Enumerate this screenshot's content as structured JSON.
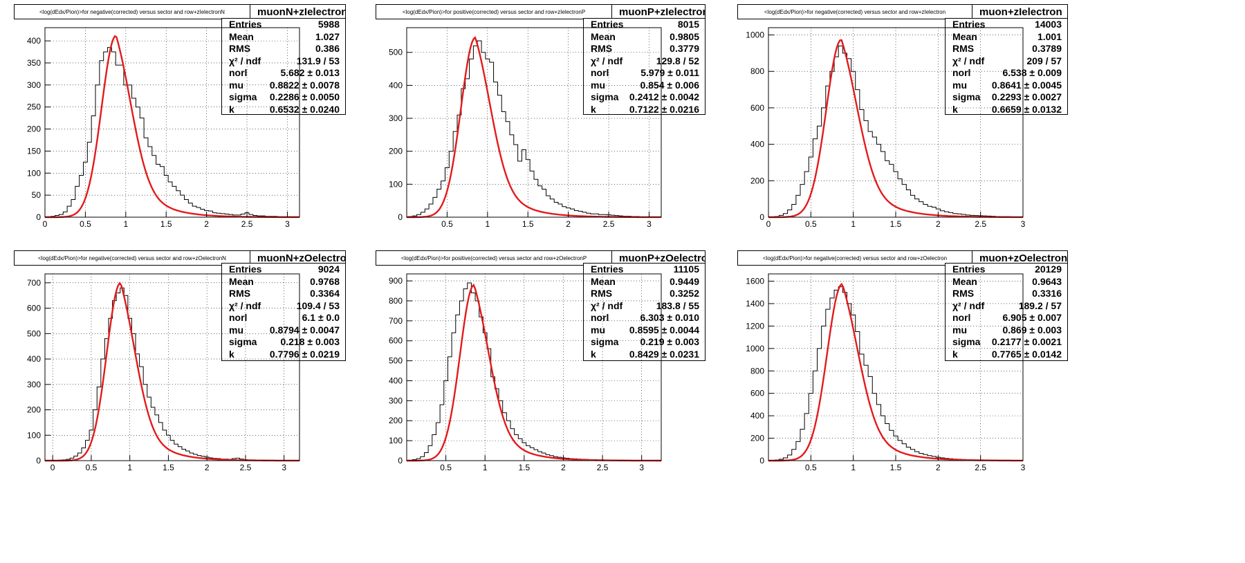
{
  "colors": {
    "fit": "#e31a1c",
    "histogram": "#000000",
    "grid": "#000000",
    "frame": "#000000"
  },
  "charts": [
    {
      "title": "<log(dEdx/Pion)>for negative(corrected) versus sector and row+zIelectronN",
      "name": "muonN+zIelectronN",
      "stats": [
        {
          "k": "Entries",
          "v": "5988"
        },
        {
          "k": "Mean",
          "v": "1.027"
        },
        {
          "k": "RMS",
          "v": "0.386"
        },
        {
          "k": "χ² / ndf",
          "v": "131.9 / 53"
        },
        {
          "k": "norl",
          "v": "5.682 ± 0.013"
        },
        {
          "k": "mu",
          "v": "0.8822 ± 0.0078"
        },
        {
          "k": "sigma",
          "v": "0.2286 ± 0.0050"
        },
        {
          "k": "k",
          "v": "0.6532 ± 0.0240"
        }
      ],
      "xticks": [
        "0",
        "0.5",
        "1",
        "1.5",
        "2",
        "2.5",
        "3"
      ],
      "yticks": [
        "0",
        "50",
        "100",
        "150",
        "200",
        "250",
        "300",
        "350",
        "400"
      ]
    },
    {
      "title": "<log(dEdx/Pion)>for positive(corrected) versus sector and row+zIelectronP",
      "name": "muonP+zIelectronP",
      "stats": [
        {
          "k": "Entries",
          "v": "8015"
        },
        {
          "k": "Mean",
          "v": "0.9805"
        },
        {
          "k": "RMS",
          "v": "0.3779"
        },
        {
          "k": "χ² / ndf",
          "v": "129.8 / 52"
        },
        {
          "k": "norl",
          "v": "5.979 ± 0.011"
        },
        {
          "k": "mu",
          "v": "0.854 ± 0.006"
        },
        {
          "k": "sigma",
          "v": "0.2412 ± 0.0042"
        },
        {
          "k": "k",
          "v": "0.7122 ± 0.0216"
        }
      ],
      "xticks": [
        "0.5",
        "1",
        "1.5",
        "2",
        "2.5",
        "3"
      ],
      "yticks": [
        "0",
        "100",
        "200",
        "300",
        "400",
        "500"
      ]
    },
    {
      "title": "<log(dEdx/Pion)>for negative(corrected) versus sector and row+zIelectron",
      "name": "muon+zIelectron",
      "stats": [
        {
          "k": "Entries",
          "v": "14003"
        },
        {
          "k": "Mean",
          "v": "1.001"
        },
        {
          "k": "RMS",
          "v": "0.3789"
        },
        {
          "k": "χ² / ndf",
          "v": "209 / 57"
        },
        {
          "k": "norl",
          "v": "6.538 ± 0.009"
        },
        {
          "k": "mu",
          "v": "0.8641 ± 0.0045"
        },
        {
          "k": "sigma",
          "v": "0.2293 ± 0.0027"
        },
        {
          "k": "k",
          "v": "0.6659 ± 0.0132"
        }
      ],
      "xticks": [
        "0",
        "0.5",
        "1",
        "1.5",
        "2",
        "2.5",
        "3"
      ],
      "yticks": [
        "0",
        "200",
        "400",
        "600",
        "800",
        "1000"
      ]
    },
    {
      "title": "<log(dEdx/Pion)>for negative(corrected) versus sector and row+zOelectronN",
      "name": "muonN+zOelectronN",
      "stats": [
        {
          "k": "Entries",
          "v": "9024"
        },
        {
          "k": "Mean",
          "v": "0.9768"
        },
        {
          "k": "RMS",
          "v": "0.3364"
        },
        {
          "k": "χ² / ndf",
          "v": "109.4 / 53"
        },
        {
          "k": "norl",
          "v": "6.1 ± 0.0"
        },
        {
          "k": "mu",
          "v": "0.8794 ± 0.0047"
        },
        {
          "k": "sigma",
          "v": "0.218 ± 0.003"
        },
        {
          "k": "k",
          "v": "0.7796 ± 0.0219"
        }
      ],
      "xticks": [
        "0",
        "0.5",
        "1",
        "1.5",
        "2",
        "2.5",
        "3"
      ],
      "yticks": [
        "0",
        "100",
        "200",
        "300",
        "400",
        "500",
        "600",
        "700"
      ]
    },
    {
      "title": "<log(dEdx/Pion)>for positive(corrected) versus sector and row+zOelectronP",
      "name": "muonP+zOelectronP",
      "stats": [
        {
          "k": "Entries",
          "v": "11105"
        },
        {
          "k": "Mean",
          "v": "0.9449"
        },
        {
          "k": "RMS",
          "v": "0.3252"
        },
        {
          "k": "χ² / ndf",
          "v": "183.8 / 55"
        },
        {
          "k": "norl",
          "v": "6.303 ± 0.010"
        },
        {
          "k": "mu",
          "v": "0.8595 ± 0.0044"
        },
        {
          "k": "sigma",
          "v": "0.219 ± 0.003"
        },
        {
          "k": "k",
          "v": "0.8429 ± 0.0231"
        }
      ],
      "xticks": [
        "0.5",
        "1",
        "1.5",
        "2",
        "2.5",
        "3"
      ],
      "yticks": [
        "0",
        "100",
        "200",
        "300",
        "400",
        "500",
        "600",
        "700",
        "800",
        "900"
      ]
    },
    {
      "title": "<log(dEdx/Pion)>for negative(corrected) versus sector and row+zOelectron",
      "name": "muon+zOelectron",
      "stats": [
        {
          "k": "Entries",
          "v": "20129"
        },
        {
          "k": "Mean",
          "v": "0.9643"
        },
        {
          "k": "RMS",
          "v": "0.3316"
        },
        {
          "k": "χ² / ndf",
          "v": "189.2 / 57"
        },
        {
          "k": "norl",
          "v": "6.905 ± 0.007"
        },
        {
          "k": "mu",
          "v": "0.869 ± 0.003"
        },
        {
          "k": "sigma",
          "v": "0.2177 ± 0.0021"
        },
        {
          "k": "k",
          "v": "0.7765 ± 0.0142"
        }
      ],
      "xticks": [
        "0.5",
        "1",
        "1.5",
        "2",
        "2.5",
        "3"
      ],
      "yticks": [
        "0",
        "200",
        "400",
        "600",
        "800",
        "1000",
        "1200",
        "1400",
        "1600"
      ]
    }
  ],
  "chart_data": [
    {
      "type": "bar",
      "title": "<log(dEdx/Pion)>for negative(corrected) versus sector and row+zIelectronN",
      "xlim": [
        0,
        3.15
      ],
      "ylim": [
        0,
        430
      ],
      "grid": true,
      "legend": "top-right",
      "x": [
        0.05,
        0.1,
        0.15,
        0.2,
        0.25,
        0.3,
        0.35,
        0.4,
        0.45,
        0.5,
        0.55,
        0.6,
        0.65,
        0.7,
        0.75,
        0.8,
        0.85,
        0.9,
        0.95,
        1.0,
        1.05,
        1.1,
        1.15,
        1.2,
        1.25,
        1.3,
        1.35,
        1.4,
        1.45,
        1.5,
        1.55,
        1.6,
        1.65,
        1.7,
        1.75,
        1.8,
        1.85,
        1.9,
        1.95,
        2.0,
        2.05,
        2.1,
        2.15,
        2.2,
        2.25,
        2.3,
        2.35,
        2.4,
        2.45,
        2.5,
        2.55,
        2.6,
        2.65,
        2.7,
        2.75,
        2.8,
        2.85,
        2.9,
        2.95,
        3.0,
        3.05,
        3.1
      ],
      "series": [
        {
          "values": [
            1,
            2,
            4,
            6,
            12,
            25,
            40,
            70,
            95,
            125,
            170,
            230,
            300,
            355,
            375,
            385,
            375,
            345,
            345,
            300,
            300,
            270,
            250,
            225,
            180,
            160,
            140,
            120,
            115,
            95,
            80,
            70,
            60,
            50,
            40,
            32,
            25,
            22,
            18,
            15,
            14,
            10,
            9,
            8,
            7,
            6,
            5,
            5,
            7,
            10,
            6,
            4,
            3,
            3,
            2,
            2,
            2,
            1,
            1,
            1,
            1,
            1
          ]
        },
        {
          "name": "fit",
          "function": "norl * exp(-0.5*((x-mu)/sigma)^2) with tail k",
          "peak_x": 0.88,
          "peak_y": 412
        }
      ]
    },
    {
      "type": "bar",
      "title": "<log(dEdx/Pion)>for positive(corrected) versus sector and row+zIelectronP",
      "xlim": [
        0,
        3.15
      ],
      "ylim": [
        0,
        575
      ],
      "grid": true,
      "legend": "top-right",
      "x": [
        0.05,
        0.1,
        0.15,
        0.2,
        0.25,
        0.3,
        0.35,
        0.4,
        0.45,
        0.5,
        0.55,
        0.6,
        0.65,
        0.7,
        0.75,
        0.8,
        0.85,
        0.9,
        0.95,
        1.0,
        1.05,
        1.1,
        1.15,
        1.2,
        1.25,
        1.3,
        1.35,
        1.4,
        1.45,
        1.5,
        1.55,
        1.6,
        1.65,
        1.7,
        1.75,
        1.8,
        1.85,
        1.9,
        1.95,
        2.0,
        2.05,
        2.1,
        2.15,
        2.2,
        2.25,
        2.3,
        2.35,
        2.4,
        2.45,
        2.5,
        2.55,
        2.6,
        2.65,
        2.7,
        2.75,
        2.8,
        2.85,
        2.9,
        2.95,
        3.0,
        3.05,
        3.1
      ],
      "series": [
        {
          "values": [
            2,
            4,
            8,
            15,
            25,
            40,
            60,
            85,
            110,
            150,
            200,
            260,
            310,
            390,
            420,
            480,
            520,
            535,
            500,
            480,
            470,
            410,
            370,
            320,
            290,
            250,
            220,
            170,
            205,
            175,
            140,
            115,
            95,
            85,
            65,
            55,
            45,
            40,
            32,
            28,
            25,
            20,
            18,
            15,
            12,
            10,
            10,
            8,
            8,
            7,
            6,
            5,
            4,
            3,
            3,
            2,
            2,
            1,
            1,
            1,
            1,
            1
          ]
        },
        {
          "name": "fit",
          "peak_x": 0.85,
          "peak_y": 545
        }
      ]
    },
    {
      "type": "bar",
      "title": "<log(dEdx/Pion)>for negative(corrected) versus sector and row+zIelectron",
      "xlim": [
        0,
        3.0
      ],
      "ylim": [
        0,
        1040
      ],
      "grid": true,
      "legend": "top-right",
      "x": [
        0.05,
        0.1,
        0.15,
        0.2,
        0.25,
        0.3,
        0.35,
        0.4,
        0.45,
        0.5,
        0.55,
        0.6,
        0.65,
        0.7,
        0.75,
        0.8,
        0.85,
        0.9,
        0.95,
        1.0,
        1.05,
        1.1,
        1.15,
        1.2,
        1.25,
        1.3,
        1.35,
        1.4,
        1.45,
        1.5,
        1.55,
        1.6,
        1.65,
        1.7,
        1.75,
        1.8,
        1.85,
        1.9,
        1.95,
        2.0,
        2.05,
        2.1,
        2.15,
        2.2,
        2.25,
        2.3,
        2.35,
        2.4,
        2.45,
        2.5,
        2.55,
        2.6,
        2.65,
        2.7,
        2.75,
        2.8,
        2.85,
        2.9,
        2.95
      ],
      "series": [
        {
          "values": [
            2,
            4,
            10,
            20,
            40,
            70,
            120,
            180,
            250,
            330,
            430,
            500,
            600,
            720,
            800,
            880,
            940,
            900,
            870,
            800,
            700,
            590,
            530,
            470,
            440,
            400,
            360,
            310,
            290,
            250,
            210,
            180,
            150,
            120,
            100,
            85,
            70,
            60,
            55,
            45,
            35,
            30,
            25,
            20,
            18,
            15,
            12,
            10,
            9,
            8,
            7,
            6,
            5,
            4,
            3,
            3,
            2,
            2,
            1
          ]
        },
        {
          "name": "fit",
          "peak_x": 0.86,
          "peak_y": 975
        }
      ]
    },
    {
      "type": "bar",
      "title": "<log(dEdx/Pion)>for negative(corrected) versus sector and row+zOelectronN",
      "xlim": [
        -0.1,
        3.2
      ],
      "ylim": [
        0,
        735
      ],
      "grid": true,
      "legend": "top-right",
      "x": [
        0.05,
        0.1,
        0.15,
        0.2,
        0.25,
        0.3,
        0.35,
        0.4,
        0.45,
        0.5,
        0.55,
        0.6,
        0.65,
        0.7,
        0.75,
        0.8,
        0.85,
        0.9,
        0.95,
        1.0,
        1.05,
        1.1,
        1.15,
        1.2,
        1.25,
        1.3,
        1.35,
        1.4,
        1.45,
        1.5,
        1.55,
        1.6,
        1.65,
        1.7,
        1.75,
        1.8,
        1.85,
        1.9,
        1.95,
        2.0,
        2.05,
        2.1,
        2.15,
        2.2,
        2.25,
        2.3,
        2.35,
        2.4,
        2.45,
        2.5,
        2.55,
        2.6,
        2.65,
        2.7,
        2.75,
        2.8,
        2.85,
        2.9,
        2.95,
        3.0,
        3.05,
        3.1
      ],
      "series": [
        {
          "values": [
            1,
            2,
            3,
            5,
            10,
            18,
            30,
            50,
            80,
            120,
            200,
            290,
            400,
            480,
            560,
            630,
            660,
            680,
            650,
            560,
            500,
            420,
            370,
            300,
            250,
            210,
            180,
            150,
            120,
            100,
            80,
            65,
            55,
            45,
            38,
            30,
            25,
            20,
            17,
            14,
            11,
            9,
            8,
            6,
            6,
            5,
            8,
            10,
            6,
            4,
            3,
            3,
            2,
            2,
            2,
            1,
            1,
            1,
            1,
            1,
            1,
            1
          ]
        },
        {
          "name": "fit",
          "peak_x": 0.88,
          "peak_y": 700
        }
      ]
    },
    {
      "type": "bar",
      "title": "<log(dEdx/Pion)>for positive(corrected) versus sector and row+zOelectronP",
      "xlim": [
        0,
        3.25
      ],
      "ylim": [
        0,
        935
      ],
      "grid": true,
      "legend": "top-right",
      "x": [
        0.05,
        0.1,
        0.15,
        0.2,
        0.25,
        0.3,
        0.35,
        0.4,
        0.45,
        0.5,
        0.55,
        0.6,
        0.65,
        0.7,
        0.75,
        0.8,
        0.85,
        0.9,
        0.95,
        1.0,
        1.05,
        1.1,
        1.15,
        1.2,
        1.25,
        1.3,
        1.35,
        1.4,
        1.45,
        1.5,
        1.55,
        1.6,
        1.65,
        1.7,
        1.75,
        1.8,
        1.85,
        1.9,
        1.95,
        2.0,
        2.05,
        2.1,
        2.15,
        2.2,
        2.25,
        2.3,
        2.35,
        2.4,
        2.45,
        2.5,
        2.55,
        2.6,
        2.65,
        2.7,
        2.75,
        2.8,
        2.85,
        2.9,
        2.95,
        3.0,
        3.05,
        3.1,
        3.15,
        3.2
      ],
      "series": [
        {
          "values": [
            2,
            5,
            10,
            20,
            40,
            75,
            130,
            190,
            280,
            400,
            520,
            640,
            730,
            800,
            860,
            890,
            840,
            800,
            720,
            640,
            560,
            420,
            360,
            300,
            240,
            200,
            160,
            130,
            110,
            90,
            75,
            65,
            55,
            45,
            38,
            30,
            25,
            20,
            17,
            14,
            12,
            10,
            9,
            8,
            7,
            6,
            5,
            5,
            4,
            4,
            3,
            3,
            2,
            2,
            2,
            1,
            1,
            1,
            1,
            1,
            1,
            1,
            1,
            1
          ]
        },
        {
          "name": "fit",
          "peak_x": 0.86,
          "peak_y": 880
        }
      ]
    },
    {
      "type": "bar",
      "title": "<log(dEdx/Pion)>for negative(corrected) versus sector and row+zOelectron",
      "xlim": [
        0,
        3.0
      ],
      "ylim": [
        0,
        1665
      ],
      "grid": true,
      "legend": "top-right",
      "x": [
        0.05,
        0.1,
        0.15,
        0.2,
        0.25,
        0.3,
        0.35,
        0.4,
        0.45,
        0.5,
        0.55,
        0.6,
        0.65,
        0.7,
        0.75,
        0.8,
        0.85,
        0.9,
        0.95,
        1.0,
        1.05,
        1.1,
        1.15,
        1.2,
        1.25,
        1.3,
        1.35,
        1.4,
        1.45,
        1.5,
        1.55,
        1.6,
        1.65,
        1.7,
        1.75,
        1.8,
        1.85,
        1.9,
        1.95,
        2.0,
        2.05,
        2.1,
        2.15,
        2.2,
        2.25,
        2.3,
        2.35,
        2.4,
        2.45,
        2.5,
        2.55,
        2.6,
        2.65,
        2.7,
        2.75,
        2.8,
        2.85,
        2.9,
        2.95
      ],
      "series": [
        {
          "values": [
            3,
            6,
            12,
            25,
            50,
            100,
            170,
            280,
            420,
            600,
            800,
            1000,
            1200,
            1350,
            1450,
            1520,
            1550,
            1500,
            1400,
            1300,
            1150,
            950,
            850,
            750,
            600,
            500,
            400,
            330,
            270,
            220,
            180,
            150,
            120,
            100,
            80,
            65,
            55,
            45,
            38,
            30,
            25,
            20,
            17,
            14,
            12,
            10,
            9,
            8,
            7,
            6,
            5,
            4,
            3,
            3,
            2,
            2,
            1,
            1,
            1
          ]
        },
        {
          "name": "fit",
          "peak_x": 0.87,
          "peak_y": 1575
        }
      ]
    }
  ]
}
